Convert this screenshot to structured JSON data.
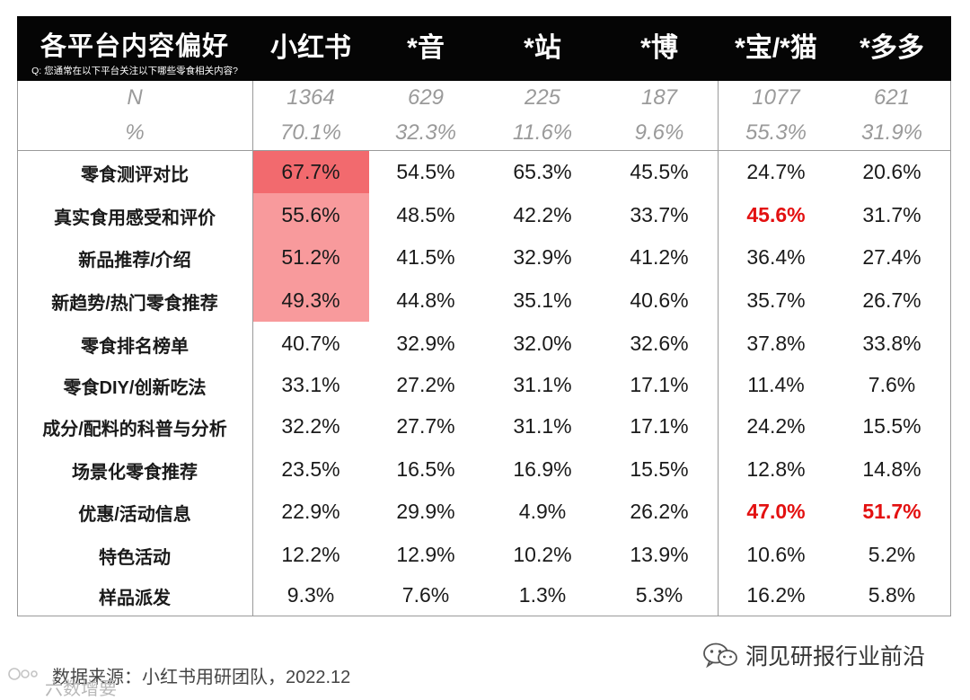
{
  "header": {
    "title": "各平台内容偏好",
    "subtitle": "Q: 您通常在以下平台关注以下哪些零食相关内容?"
  },
  "footer": {
    "source": "数据来源：小红书用研团队，2022.12",
    "brand": "洞见研报行业前沿",
    "watermark": "六数增要"
  },
  "chart_data": {
    "type": "table",
    "title": "各平台内容偏好",
    "subtitle": "Q: 您通常在以下平台关注以下哪些零食相关内容?",
    "columns": [
      "小红书",
      "*音",
      "*站",
      "*博",
      "*宝/*猫",
      "*多多"
    ],
    "meta_rows": [
      {
        "label": "N",
        "values": [
          "1364",
          "629",
          "225",
          "187",
          "1077",
          "621"
        ]
      },
      {
        "label": "%",
        "values": [
          "70.1%",
          "32.3%",
          "11.6%",
          "9.6%",
          "55.3%",
          "31.9%"
        ]
      }
    ],
    "rows": [
      {
        "label": "零食测评对比",
        "values": [
          "67.7%",
          "54.5%",
          "65.3%",
          "45.5%",
          "24.7%",
          "20.6%"
        ]
      },
      {
        "label": "真实食用感受和评价",
        "values": [
          "55.6%",
          "48.5%",
          "42.2%",
          "33.7%",
          "45.6%",
          "31.7%"
        ]
      },
      {
        "label": "新品推荐/介绍",
        "values": [
          "51.2%",
          "41.5%",
          "32.9%",
          "41.2%",
          "36.4%",
          "27.4%"
        ]
      },
      {
        "label": "新趋势/热门零食推荐",
        "values": [
          "49.3%",
          "44.8%",
          "35.1%",
          "40.6%",
          "35.7%",
          "26.7%"
        ]
      },
      {
        "label": "零食排名榜单",
        "values": [
          "40.7%",
          "32.9%",
          "32.0%",
          "32.6%",
          "37.8%",
          "33.8%"
        ]
      },
      {
        "label": "零食DIY/创新吃法",
        "values": [
          "33.1%",
          "27.2%",
          "31.1%",
          "17.1%",
          "11.4%",
          "7.6%"
        ]
      },
      {
        "label": "成分/配料的科普与分析",
        "values": [
          "32.2%",
          "27.7%",
          "31.1%",
          "17.1%",
          "24.2%",
          "15.5%"
        ]
      },
      {
        "label": "场景化零食推荐",
        "values": [
          "23.5%",
          "16.5%",
          "16.9%",
          "15.5%",
          "12.8%",
          "14.8%"
        ]
      },
      {
        "label": "优惠/活动信息",
        "values": [
          "22.9%",
          "29.9%",
          "4.9%",
          "26.2%",
          "47.0%",
          "51.7%"
        ]
      },
      {
        "label": "特色活动",
        "values": [
          "12.2%",
          "12.9%",
          "10.2%",
          "13.9%",
          "10.6%",
          "5.2%"
        ]
      },
      {
        "label": "样品派发",
        "values": [
          "9.3%",
          "7.6%",
          "1.3%",
          "5.3%",
          "16.2%",
          "5.8%"
        ]
      }
    ],
    "highlights": [
      {
        "row": 0,
        "col": 0,
        "style": "fill",
        "color": "#f26a6e"
      },
      {
        "row": 1,
        "col": 0,
        "style": "fill",
        "color": "#f89a9c"
      },
      {
        "row": 2,
        "col": 0,
        "style": "fill",
        "color": "#f89a9c"
      },
      {
        "row": 3,
        "col": 0,
        "style": "fill",
        "color": "#f89a9c"
      },
      {
        "row": 1,
        "col": 4,
        "style": "red-text",
        "color": "#e31010"
      },
      {
        "row": 8,
        "col": 4,
        "style": "red-text",
        "color": "#e31010"
      },
      {
        "row": 8,
        "col": 5,
        "style": "red-text",
        "color": "#e31010"
      }
    ]
  }
}
